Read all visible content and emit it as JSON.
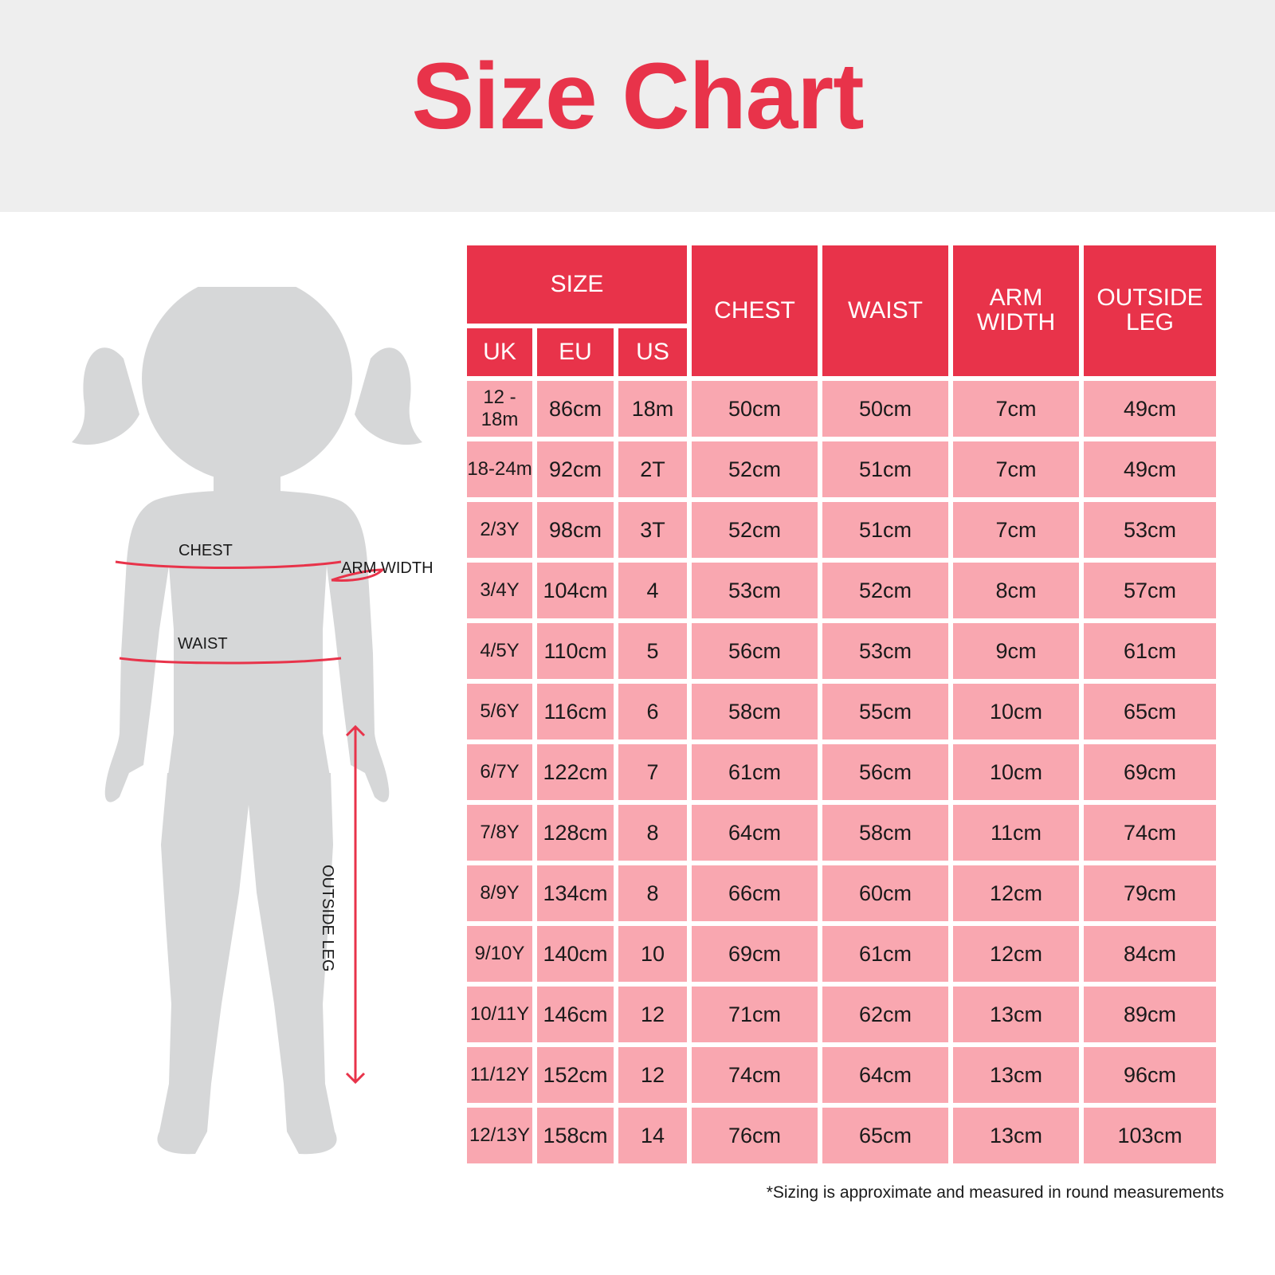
{
  "title": "Size Chart",
  "figure": {
    "labels": {
      "chest": "CHEST",
      "waist": "WAIST",
      "arm_width": "ARM WIDTH",
      "outside_leg": "OUTSIDE LEG"
    }
  },
  "table": {
    "header": {
      "size": "SIZE",
      "chest": "CHEST",
      "waist": "WAIST",
      "arm_width": "ARM WIDTH",
      "outside_leg": "OUTSIDE LEG",
      "uk": "UK",
      "eu": "EU",
      "us": "US"
    },
    "rows": [
      {
        "uk": "12 - 18m",
        "eu": "86cm",
        "us": "18m",
        "chest": "50cm",
        "waist": "50cm",
        "arm_width": "7cm",
        "outside_leg": "49cm"
      },
      {
        "uk": "18-24m",
        "eu": "92cm",
        "us": "2T",
        "chest": "52cm",
        "waist": "51cm",
        "arm_width": "7cm",
        "outside_leg": "49cm"
      },
      {
        "uk": "2/3Y",
        "eu": "98cm",
        "us": "3T",
        "chest": "52cm",
        "waist": "51cm",
        "arm_width": "7cm",
        "outside_leg": "53cm"
      },
      {
        "uk": "3/4Y",
        "eu": "104cm",
        "us": "4",
        "chest": "53cm",
        "waist": "52cm",
        "arm_width": "8cm",
        "outside_leg": "57cm"
      },
      {
        "uk": "4/5Y",
        "eu": "110cm",
        "us": "5",
        "chest": "56cm",
        "waist": "53cm",
        "arm_width": "9cm",
        "outside_leg": "61cm"
      },
      {
        "uk": "5/6Y",
        "eu": "116cm",
        "us": "6",
        "chest": "58cm",
        "waist": "55cm",
        "arm_width": "10cm",
        "outside_leg": "65cm"
      },
      {
        "uk": "6/7Y",
        "eu": "122cm",
        "us": "7",
        "chest": "61cm",
        "waist": "56cm",
        "arm_width": "10cm",
        "outside_leg": "69cm"
      },
      {
        "uk": "7/8Y",
        "eu": "128cm",
        "us": "8",
        "chest": "64cm",
        "waist": "58cm",
        "arm_width": "11cm",
        "outside_leg": "74cm"
      },
      {
        "uk": "8/9Y",
        "eu": "134cm",
        "us": "8",
        "chest": "66cm",
        "waist": "60cm",
        "arm_width": "12cm",
        "outside_leg": "79cm"
      },
      {
        "uk": "9/10Y",
        "eu": "140cm",
        "us": "10",
        "chest": "69cm",
        "waist": "61cm",
        "arm_width": "12cm",
        "outside_leg": "84cm"
      },
      {
        "uk": "10/11Y",
        "eu": "146cm",
        "us": "12",
        "chest": "71cm",
        "waist": "62cm",
        "arm_width": "13cm",
        "outside_leg": "89cm"
      },
      {
        "uk": "11/12Y",
        "eu": "152cm",
        "us": "12",
        "chest": "74cm",
        "waist": "64cm",
        "arm_width": "13cm",
        "outside_leg": "96cm"
      },
      {
        "uk": "12/13Y",
        "eu": "158cm",
        "us": "14",
        "chest": "76cm",
        "waist": "65cm",
        "arm_width": "13cm",
        "outside_leg": "103cm"
      }
    ]
  },
  "footnote": "*Sizing is approximate and measured in round measurements",
  "colors": {
    "accent": "#e8334a",
    "cell": "#f9a7b0",
    "header_band": "#eeeeee",
    "silhouette": "#d6d7d8"
  }
}
